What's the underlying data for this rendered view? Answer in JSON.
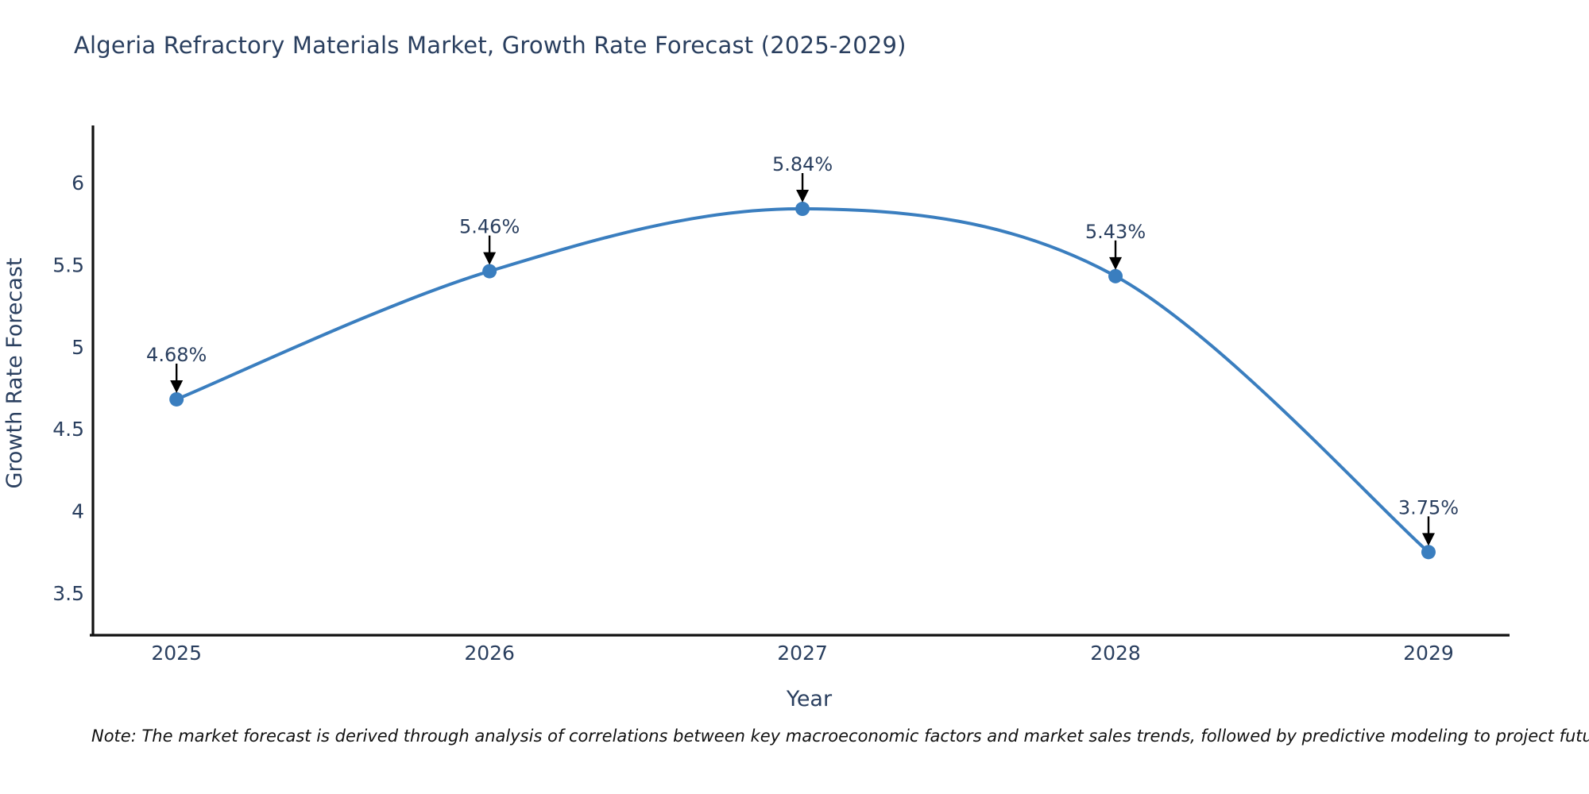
{
  "title": "Algeria Refractory Materials Market, Growth Rate Forecast (2025-2029)",
  "note": "Note: The market forecast is derived through analysis of correlations between key macroeconomic factors and market sales trends, followed by predictive modeling to project future sales",
  "chart_data": {
    "type": "line",
    "title": "Algeria Refractory Materials Market, Growth Rate Forecast (2025-2029)",
    "xlabel": "Year",
    "ylabel": "Growth Rate Forecast",
    "x": [
      2025,
      2026,
      2027,
      2028,
      2029
    ],
    "values": [
      4.68,
      5.46,
      5.84,
      5.43,
      3.75
    ],
    "point_labels": [
      "4.68%",
      "5.46%",
      "5.84%",
      "5.43%",
      "3.75%"
    ],
    "xticks": [
      "2025",
      "2026",
      "2027",
      "2028",
      "2029"
    ],
    "yticks": [
      6,
      5.5,
      5,
      4.5,
      4,
      3.5
    ],
    "xlim": [
      2024.733,
      2029.259
    ],
    "ylim": [
      3.244,
      6.338
    ],
    "grid": false,
    "legend": "none",
    "line_shape": "spline",
    "colors": {
      "line": "#3a7ebf",
      "marker": "#3a7ebf",
      "axis_line": "#111111",
      "tick_label": "#2a3f5f",
      "annotation_text": "#2a3f5f",
      "annotation_arrow": "#000000",
      "title_text": "#2a3f5f"
    }
  }
}
